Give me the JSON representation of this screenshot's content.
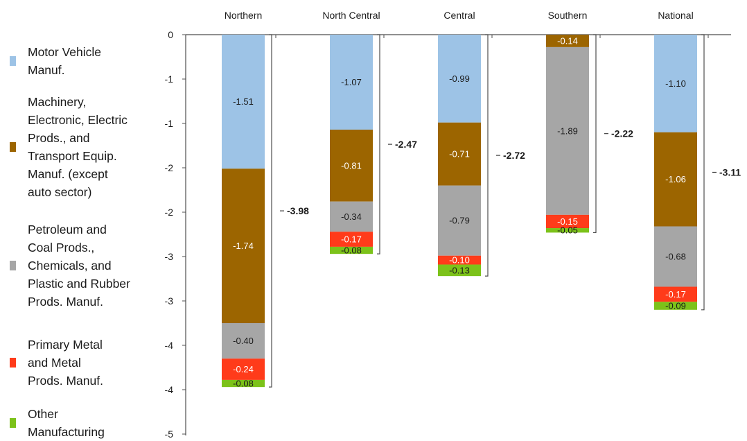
{
  "chart_data": {
    "type": "bar",
    "stacked": true,
    "categories": [
      "Northern",
      "North Central",
      "Central",
      "Southern",
      "National"
    ],
    "y_tick_labels": [
      "0",
      "-1",
      "-1",
      "-2",
      "-2",
      "-3",
      "-3",
      "-4",
      "-4",
      "-5"
    ],
    "y_tick_values": [
      0,
      -0.5,
      -1,
      -1.5,
      -2,
      -2.5,
      -3,
      -3.5,
      -4,
      -4.5
    ],
    "ylim": [
      -4.5,
      0
    ],
    "grid": false,
    "legend_position": "left",
    "series": [
      {
        "name": "Motor Vehicle Manuf.",
        "color": "#9dc3e6",
        "values": [
          -1.51,
          -1.07,
          -0.99,
          0,
          -1.1
        ],
        "labels": [
          "-1.51",
          "-1.07",
          "-0.99",
          "",
          "-1.10"
        ]
      },
      {
        "name": "Machinery, Electronic, Electric Prods., and Transport Equip. Manuf. (except auto sector)",
        "color": "#9c6500",
        "values": [
          -1.74,
          -0.81,
          -0.71,
          -0.14,
          -1.06
        ],
        "labels": [
          "-1.74",
          "-0.81",
          "-0.71",
          "-0.14",
          "-1.06"
        ]
      },
      {
        "name": "Petroleum and Coal Prods., Chemicals, and Plastic and Rubber Prods. Manuf.",
        "color": "#a6a6a6",
        "values": [
          -0.4,
          -0.34,
          -0.79,
          -1.89,
          -0.68
        ],
        "labels": [
          "-0.40",
          "-0.34",
          "-0.79",
          "-1.89",
          "-0.68"
        ]
      },
      {
        "name": "Primary Metal and Metal Prods. Manuf.",
        "color": "#ff3b1a",
        "values": [
          -0.24,
          -0.17,
          -0.1,
          -0.15,
          -0.17
        ],
        "labels": [
          "-0.24",
          "-0.17",
          "-0.10",
          "-0.15",
          "-0.17"
        ]
      },
      {
        "name": "Other Manufacturing",
        "color": "#7cc21a",
        "values": [
          -0.08,
          -0.08,
          -0.13,
          -0.05,
          -0.09
        ],
        "labels": [
          "-0.08",
          "-0.08",
          "-0.13",
          "-0.05",
          "-0.09"
        ]
      }
    ],
    "totals": [
      "-3.98",
      "-2.47",
      "-2.72",
      "-2.22",
      "-3.11"
    ]
  },
  "legend": {
    "items": [
      {
        "lines": [
          "Motor Vehicle",
          "Manuf."
        ],
        "color": "#9dc3e6"
      },
      {
        "lines": [
          "Machinery,",
          "Electronic, Electric",
          "Prods., and",
          "Transport Equip.",
          "Manuf. (except",
          "auto sector)"
        ],
        "color": "#9c6500"
      },
      {
        "lines": [
          "Petroleum and",
          "Coal Prods.,",
          "Chemicals, and",
          "Plastic and Rubber",
          "Prods. Manuf."
        ],
        "color": "#a6a6a6"
      },
      {
        "lines": [
          "Primary Metal",
          "and Metal",
          "Prods. Manuf."
        ],
        "color": "#ff3b1a"
      },
      {
        "lines": [
          "Other",
          "Manufacturing"
        ],
        "color": "#7cc21a"
      }
    ]
  }
}
